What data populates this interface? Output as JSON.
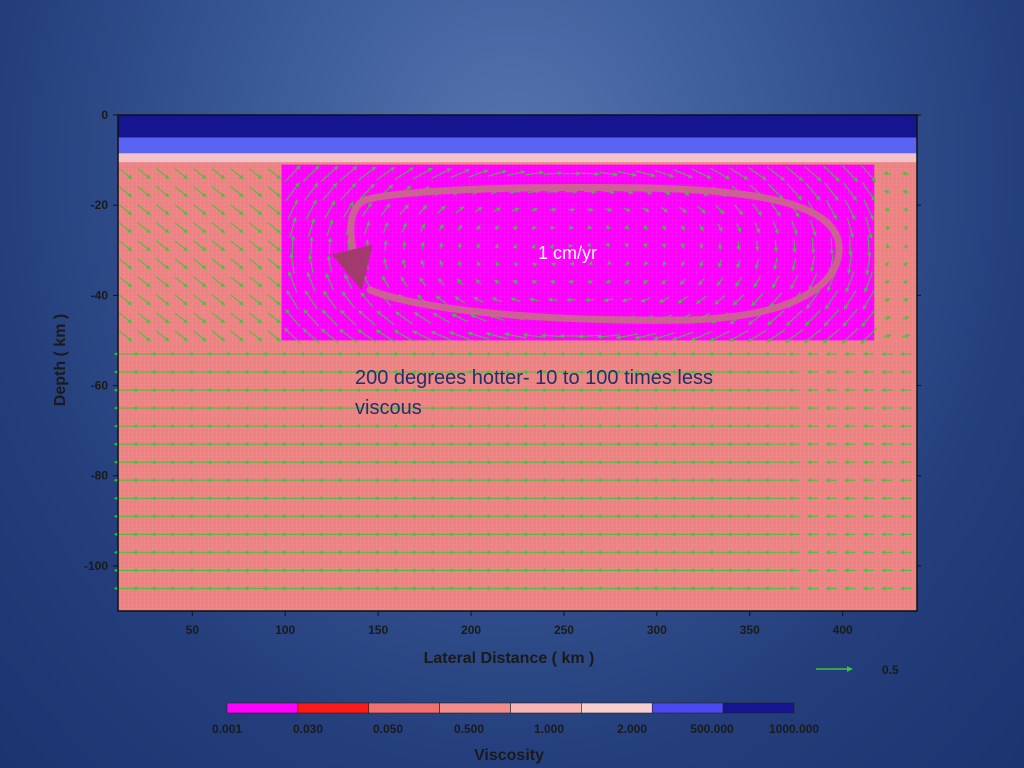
{
  "chart_data": {
    "type": "heatmap",
    "xlabel": "Lateral Distance ( km )",
    "ylabel": "Depth ( km )",
    "xlim": [
      10,
      440
    ],
    "ylim": [
      -110,
      0
    ],
    "xticks": [
      "50",
      "100",
      "150",
      "200",
      "250",
      "300",
      "350",
      "400"
    ],
    "xtick_values": [
      50,
      100,
      150,
      200,
      250,
      300,
      350,
      400
    ],
    "yticks": [
      "0",
      "-20",
      "-40",
      "-60",
      "-80",
      "-100"
    ],
    "ytick_values": [
      0,
      -20,
      -40,
      -60,
      -80,
      -100
    ],
    "layers": [
      {
        "name": "upper-crust",
        "depth_top": 0,
        "depth_bottom": -5,
        "viscosity": 1000
      },
      {
        "name": "mid-crust",
        "depth_top": -5,
        "depth_bottom": -8.5,
        "viscosity": 500
      },
      {
        "name": "transition",
        "depth_top": -8.5,
        "depth_bottom": -10.5,
        "viscosity": 2
      },
      {
        "name": "mantle",
        "depth_top": -10.5,
        "depth_bottom": -110,
        "viscosity": 0.5
      },
      {
        "name": "hot-anomaly",
        "x_range": [
          98,
          417
        ],
        "depth_top": -11,
        "depth_bottom": -50,
        "viscosity": 0.001
      }
    ],
    "velocity_field": {
      "description_key": "green vectors",
      "scale_value": "0.5",
      "vortex_center": [
        255,
        -30
      ],
      "background_flow": "leftward"
    },
    "colorbar": {
      "title": "Viscosity",
      "labels": [
        "0.001",
        "0.030",
        "0.050",
        "0.500",
        "1.000",
        "2.000",
        "500.000",
        "1000.000"
      ],
      "colors": [
        "#ff00ff",
        "#ff1a1a",
        "#f07070",
        "#f08c8c",
        "#f8b5b5",
        "#f6d0d0",
        "#4a4af0",
        "#151590"
      ]
    },
    "annotations": {
      "velocity": "1 cm/yr",
      "description": "200 degrees hotter- 10 to 100 times less viscous"
    }
  }
}
